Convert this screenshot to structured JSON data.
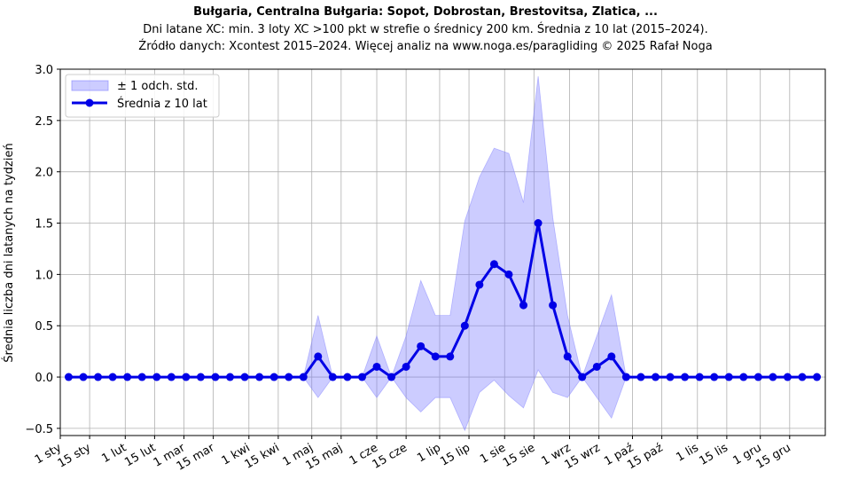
{
  "chart_data": {
    "type": "line",
    "title": "Bułgaria, Centralna Bułgaria: Sopot, Dobrostan, Brestovitsa, Zlatica, ...",
    "subtitle_lines": [
      "Dni latane XC: min. 3 loty XC >100 pkt w strefie o średnicy 200 km. Średnia z 10 lat (2015–2024).",
      "Źródło danych: Xcontest 2015–2024. Więcej analiz na www.noga.es/paragliding © 2025 Rafał Noga"
    ],
    "xlabel": "",
    "ylabel": "Średnia liczba dni latanych na tydzień",
    "ylim": [
      -0.57,
      3.0
    ],
    "yticks": [
      -0.5,
      0.0,
      0.5,
      1.0,
      1.5,
      2.0,
      2.5,
      3.0
    ],
    "ytick_labels": [
      "−0.5",
      "0.0",
      "0.5",
      "1.0",
      "1.5",
      "2.0",
      "2.5",
      "3.0"
    ],
    "xlim": [
      0,
      365
    ],
    "xticks": [
      0,
      14,
      31,
      45,
      59,
      73,
      90,
      104,
      120,
      134,
      151,
      165,
      181,
      195,
      212,
      226,
      243,
      257,
      273,
      287,
      304,
      318,
      334,
      348
    ],
    "xtick_labels": [
      "1 sty",
      "15 sty",
      "1 lut",
      "15 lut",
      "1 mar",
      "15 mar",
      "1 kwi",
      "15 kwi",
      "1 maj",
      "15 maj",
      "1 cze",
      "15 cze",
      "1 lip",
      "15 lip",
      "1 sie",
      "15 sie",
      "1 wrz",
      "15 wrz",
      "1 paź",
      "15 paź",
      "1 lis",
      "15 lis",
      "1 gru",
      "15 gru"
    ],
    "grid": true,
    "legend_position": "top-left",
    "x_weeks_day": [
      4,
      11,
      18,
      25,
      32,
      39,
      46,
      53,
      60,
      67,
      74,
      81,
      88,
      95,
      102,
      109,
      116,
      123,
      130,
      137,
      144,
      151,
      158,
      165,
      172,
      179,
      186,
      193,
      200,
      207,
      214,
      221,
      228,
      235,
      242,
      249,
      256,
      263,
      270,
      277,
      284,
      291,
      298,
      305,
      312,
      319,
      326,
      333,
      340,
      347,
      354,
      361
    ],
    "series": [
      {
        "name": "Średnia z 10 lat",
        "color": "#0000e6",
        "values": [
          0,
          0,
          0,
          0,
          0,
          0,
          0,
          0,
          0,
          0,
          0,
          0,
          0,
          0,
          0,
          0,
          0,
          0.2,
          0,
          0,
          0,
          0.1,
          0,
          0.1,
          0.3,
          0.2,
          0.2,
          0.5,
          0.9,
          1.1,
          1.0,
          0.7,
          1.5,
          0.7,
          0.2,
          0,
          0.1,
          0.2,
          0,
          0,
          0,
          0,
          0,
          0,
          0,
          0,
          0,
          0,
          0,
          0,
          0,
          0
        ]
      }
    ],
    "band": {
      "name": "± 1 odch. std.",
      "color": "#8080ff",
      "opacity": 0.4,
      "std": [
        0,
        0,
        0,
        0,
        0,
        0,
        0,
        0,
        0,
        0,
        0,
        0,
        0,
        0,
        0,
        0,
        0,
        0.4,
        0,
        0,
        0,
        0.3,
        0,
        0.3,
        0.64,
        0.4,
        0.4,
        1.02,
        1.05,
        1.13,
        1.18,
        1.0,
        1.43,
        0.85,
        0.4,
        0,
        0.3,
        0.6,
        0,
        0,
        0,
        0,
        0,
        0,
        0,
        0,
        0,
        0,
        0,
        0,
        0,
        0
      ]
    }
  }
}
